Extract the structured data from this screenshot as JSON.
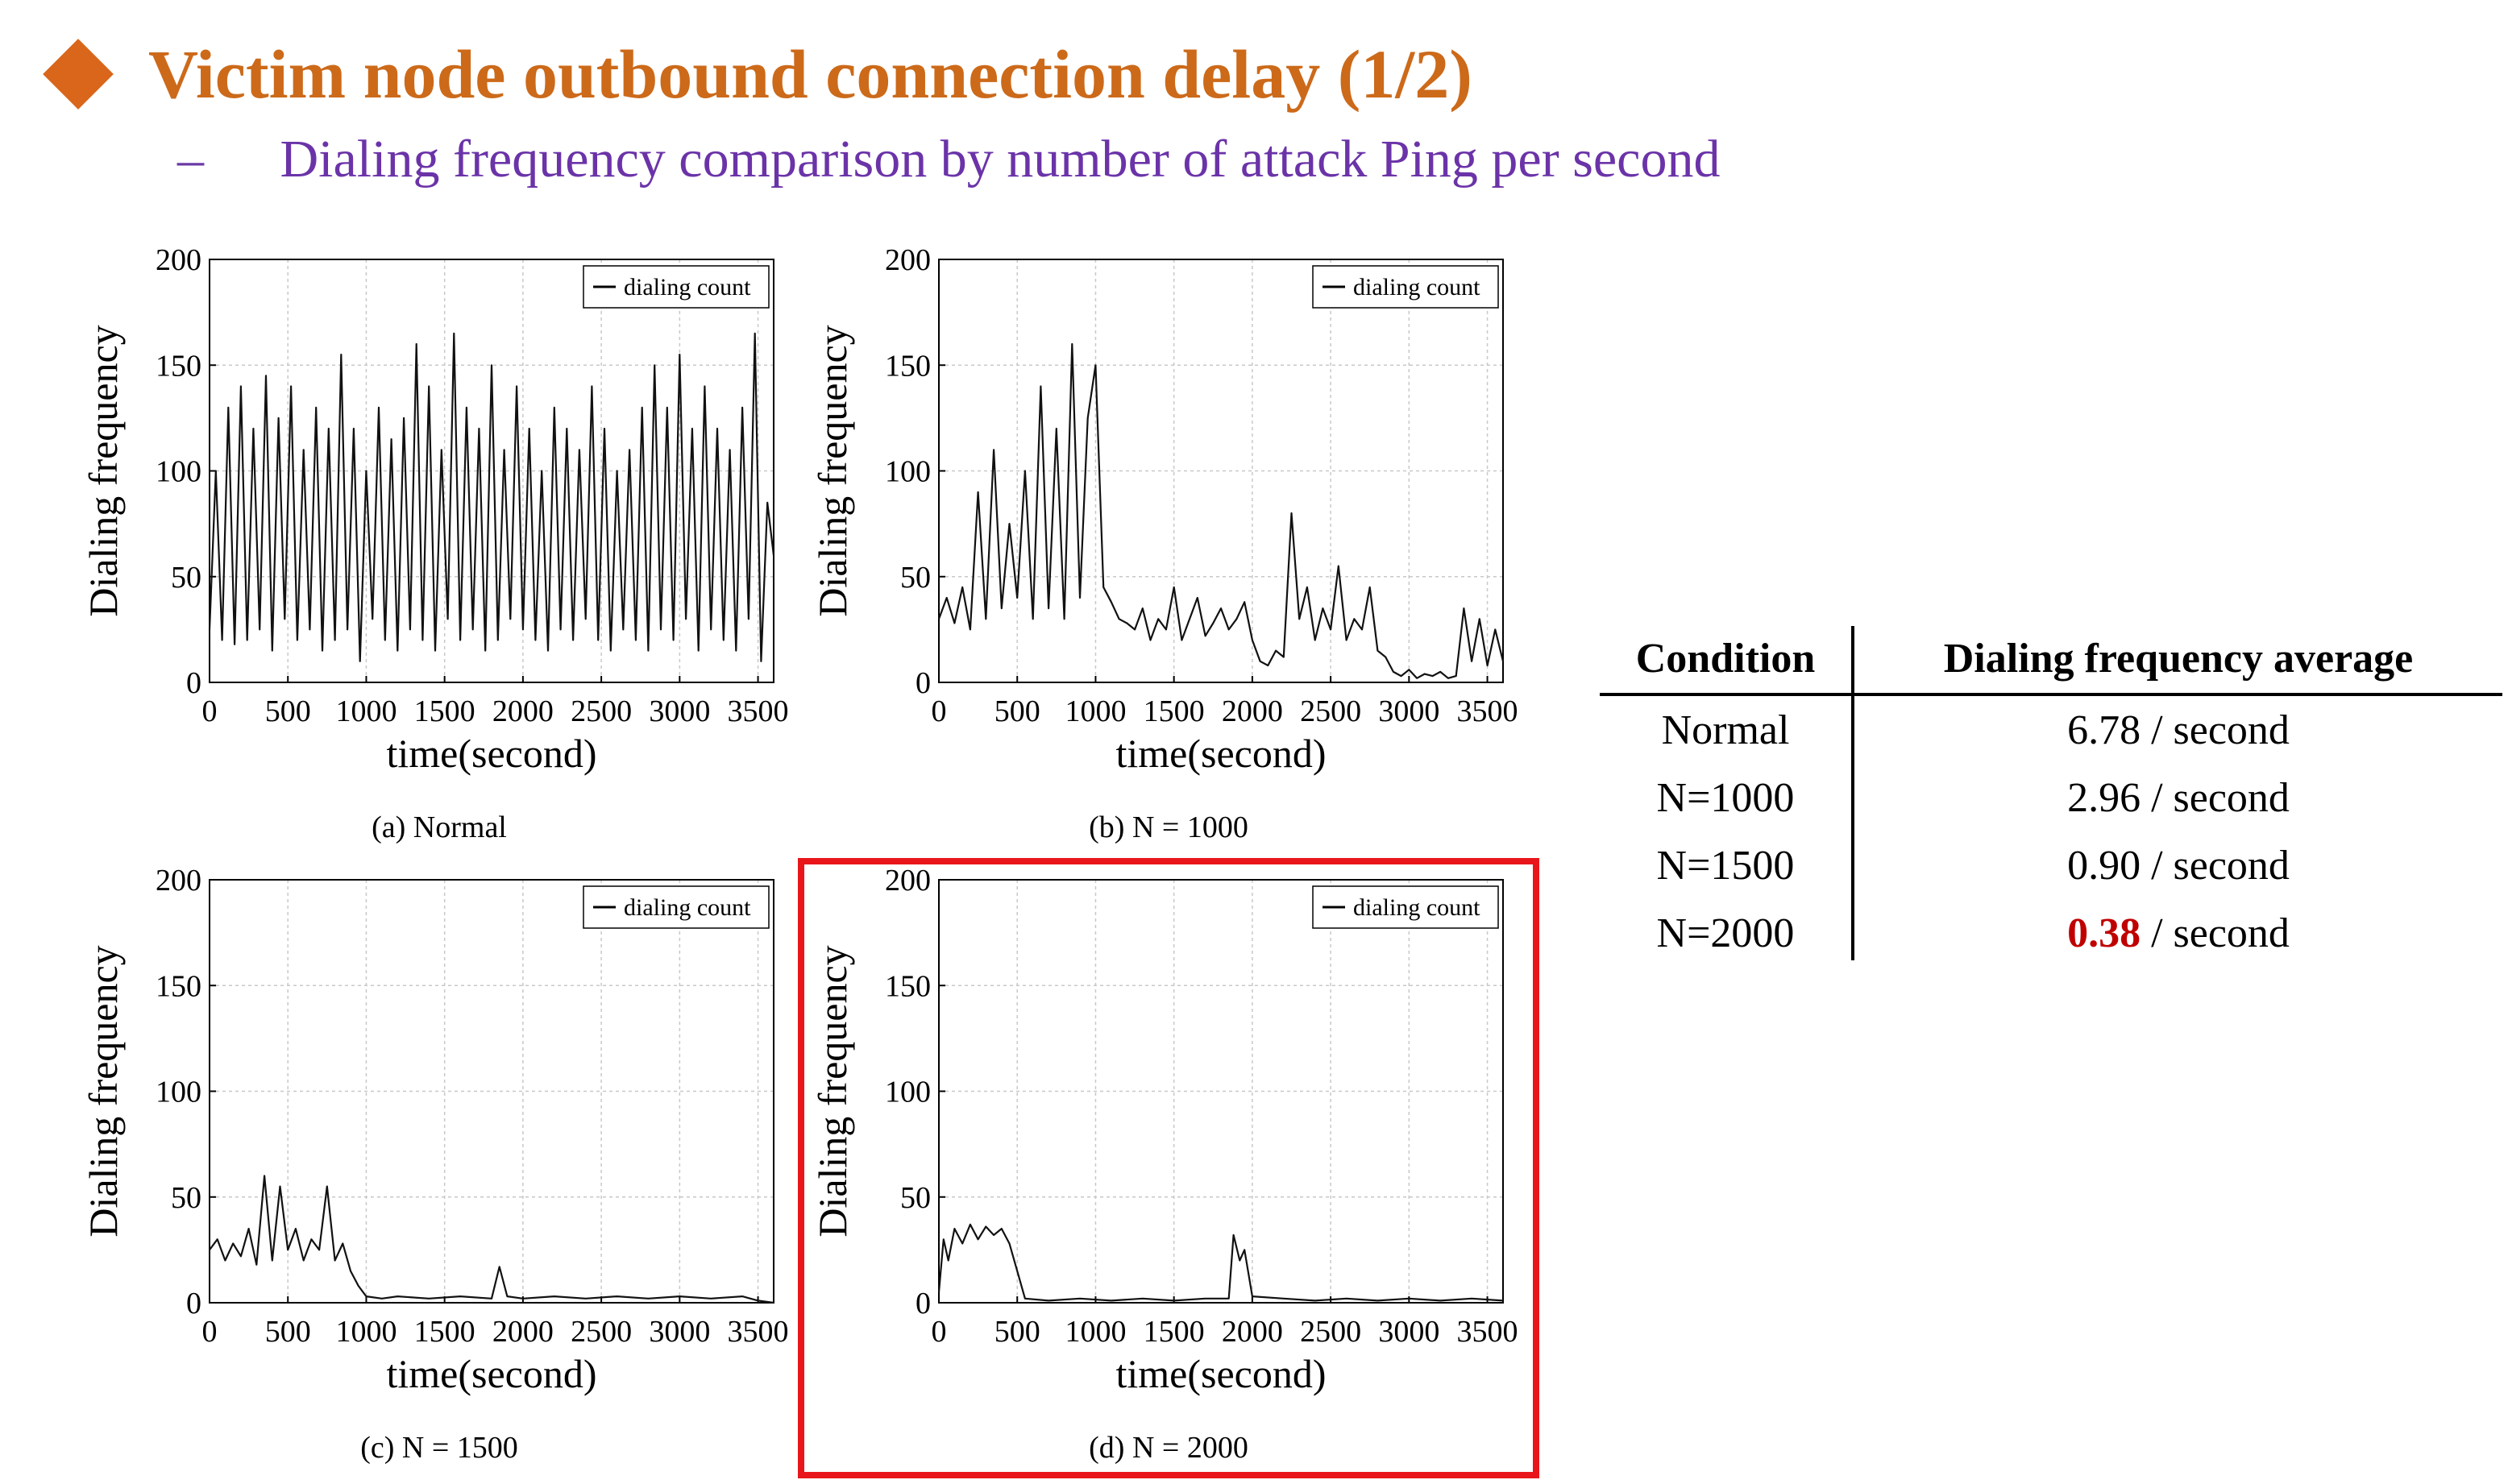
{
  "slide": {
    "title": "Victim node outbound connection delay (1/2)",
    "subtitle_dash": "–",
    "subtitle": "Dialing frequency comparison by number of attack Ping per second",
    "accent_color": "#cc6a1a",
    "subtitle_color": "#6b33a8",
    "highlight_color": "#e8161b"
  },
  "chart_data": [
    {
      "type": "line",
      "caption": "(a) Normal",
      "xlabel": "time(second)",
      "ylabel": "Dialing frequency",
      "xlim": [
        0,
        3600
      ],
      "ylim": [
        0,
        200
      ],
      "xticks": [
        0,
        500,
        1000,
        1500,
        2000,
        2500,
        3000,
        3500
      ],
      "yticks": [
        0,
        50,
        100,
        150,
        200
      ],
      "grid": true,
      "legend": "top-right",
      "series": [
        {
          "name": "dialing count",
          "x": [
            0,
            40,
            80,
            120,
            160,
            200,
            240,
            280,
            320,
            360,
            400,
            440,
            480,
            520,
            560,
            600,
            640,
            680,
            720,
            760,
            800,
            840,
            880,
            920,
            960,
            1000,
            1040,
            1080,
            1120,
            1160,
            1200,
            1240,
            1280,
            1320,
            1360,
            1400,
            1440,
            1480,
            1520,
            1560,
            1600,
            1640,
            1680,
            1720,
            1760,
            1800,
            1840,
            1880,
            1920,
            1960,
            2000,
            2040,
            2080,
            2120,
            2160,
            2200,
            2240,
            2280,
            2320,
            2360,
            2400,
            2440,
            2480,
            2520,
            2560,
            2600,
            2640,
            2680,
            2720,
            2760,
            2800,
            2840,
            2880,
            2920,
            2960,
            3000,
            3040,
            3080,
            3120,
            3160,
            3200,
            3240,
            3280,
            3320,
            3360,
            3400,
            3440,
            3480,
            3520,
            3560,
            3600
          ],
          "y": [
            25,
            100,
            20,
            130,
            18,
            140,
            20,
            120,
            25,
            145,
            15,
            125,
            30,
            140,
            20,
            110,
            25,
            130,
            15,
            120,
            20,
            155,
            25,
            120,
            10,
            100,
            30,
            130,
            20,
            115,
            15,
            125,
            25,
            160,
            20,
            140,
            15,
            110,
            30,
            165,
            20,
            130,
            25,
            120,
            15,
            150,
            20,
            110,
            30,
            140,
            25,
            120,
            20,
            100,
            15,
            130,
            25,
            120,
            20,
            110,
            30,
            140,
            20,
            120,
            15,
            100,
            25,
            110,
            20,
            130,
            15,
            150,
            25,
            130,
            20,
            155,
            30,
            120,
            15,
            140,
            25,
            120,
            20,
            110,
            15,
            130,
            30,
            165,
            10,
            85,
            60
          ]
        }
      ]
    },
    {
      "type": "line",
      "caption": "(b) N = 1000",
      "xlabel": "time(second)",
      "ylabel": "Dialing frequency",
      "xlim": [
        0,
        3600
      ],
      "ylim": [
        0,
        200
      ],
      "xticks": [
        0,
        500,
        1000,
        1500,
        2000,
        2500,
        3000,
        3500
      ],
      "yticks": [
        0,
        50,
        100,
        150,
        200
      ],
      "grid": true,
      "legend": "top-right",
      "series": [
        {
          "name": "dialing count",
          "x": [
            0,
            50,
            100,
            150,
            200,
            250,
            300,
            350,
            400,
            450,
            500,
            550,
            600,
            650,
            700,
            750,
            800,
            850,
            900,
            950,
            1000,
            1050,
            1100,
            1150,
            1200,
            1250,
            1300,
            1350,
            1400,
            1450,
            1500,
            1550,
            1600,
            1650,
            1700,
            1750,
            1800,
            1850,
            1900,
            1950,
            2000,
            2050,
            2100,
            2150,
            2200,
            2250,
            2300,
            2350,
            2400,
            2450,
            2500,
            2550,
            2600,
            2650,
            2700,
            2750,
            2800,
            2850,
            2900,
            2950,
            3000,
            3050,
            3100,
            3150,
            3200,
            3250,
            3300,
            3350,
            3400,
            3450,
            3500,
            3550,
            3600
          ],
          "y": [
            30,
            40,
            28,
            45,
            25,
            90,
            30,
            110,
            35,
            75,
            40,
            100,
            30,
            140,
            35,
            120,
            30,
            160,
            40,
            125,
            150,
            45,
            38,
            30,
            28,
            25,
            35,
            20,
            30,
            25,
            45,
            20,
            30,
            40,
            22,
            28,
            35,
            25,
            30,
            38,
            20,
            10,
            8,
            15,
            12,
            80,
            30,
            45,
            20,
            35,
            25,
            55,
            20,
            30,
            25,
            45,
            15,
            12,
            5,
            3,
            6,
            2,
            4,
            3,
            5,
            2,
            3,
            35,
            10,
            30,
            8,
            25,
            10
          ]
        }
      ]
    },
    {
      "type": "line",
      "caption": "(c) N = 1500",
      "xlabel": "time(second)",
      "ylabel": "Dialing frequency",
      "xlim": [
        0,
        3600
      ],
      "ylim": [
        0,
        200
      ],
      "xticks": [
        0,
        500,
        1000,
        1500,
        2000,
        2500,
        3000,
        3500
      ],
      "yticks": [
        0,
        50,
        100,
        150,
        200
      ],
      "grid": true,
      "legend": "top-right",
      "series": [
        {
          "name": "dialing count",
          "x": [
            0,
            50,
            100,
            150,
            200,
            250,
            300,
            350,
            400,
            450,
            500,
            550,
            600,
            650,
            700,
            750,
            800,
            850,
            900,
            950,
            1000,
            1100,
            1200,
            1400,
            1600,
            1800,
            1850,
            1900,
            2000,
            2200,
            2400,
            2600,
            2800,
            3000,
            3200,
            3400,
            3500,
            3600
          ],
          "y": [
            25,
            30,
            20,
            28,
            22,
            35,
            18,
            60,
            20,
            55,
            25,
            35,
            20,
            30,
            25,
            55,
            20,
            28,
            15,
            8,
            3,
            2,
            3,
            2,
            3,
            2,
            17,
            3,
            2,
            3,
            2,
            3,
            2,
            3,
            2,
            3,
            1,
            0
          ]
        }
      ]
    },
    {
      "type": "line",
      "caption": "(d) N = 2000",
      "xlabel": "time(second)",
      "ylabel": "Dialing frequency",
      "xlim": [
        0,
        3600
      ],
      "ylim": [
        0,
        200
      ],
      "xticks": [
        0,
        500,
        1000,
        1500,
        2000,
        2500,
        3000,
        3500
      ],
      "yticks": [
        0,
        50,
        100,
        150,
        200
      ],
      "grid": true,
      "legend": "top-right",
      "series": [
        {
          "name": "dialing count",
          "x": [
            0,
            30,
            60,
            100,
            150,
            200,
            250,
            300,
            350,
            400,
            450,
            500,
            550,
            700,
            900,
            1100,
            1300,
            1500,
            1700,
            1850,
            1880,
            1920,
            1950,
            2000,
            2200,
            2400,
            2600,
            2800,
            3000,
            3200,
            3400,
            3600
          ],
          "y": [
            5,
            30,
            20,
            35,
            28,
            37,
            30,
            36,
            32,
            35,
            28,
            15,
            2,
            1,
            2,
            1,
            2,
            1,
            2,
            2,
            32,
            20,
            25,
            3,
            2,
            1,
            2,
            1,
            2,
            1,
            2,
            1
          ]
        }
      ]
    }
  ],
  "table": {
    "headers": [
      "Condition",
      "Dialing frequency average"
    ],
    "rows": [
      {
        "condition": "Normal",
        "value": "6.78",
        "unit": " / second",
        "highlight": false
      },
      {
        "condition": "N=1000",
        "value": "2.96",
        "unit": " / second",
        "highlight": false
      },
      {
        "condition": "N=1500",
        "value": "0.90",
        "unit": " / second",
        "highlight": false
      },
      {
        "condition": "N=2000",
        "value": "0.38",
        "unit": " / second",
        "highlight": true
      }
    ]
  }
}
